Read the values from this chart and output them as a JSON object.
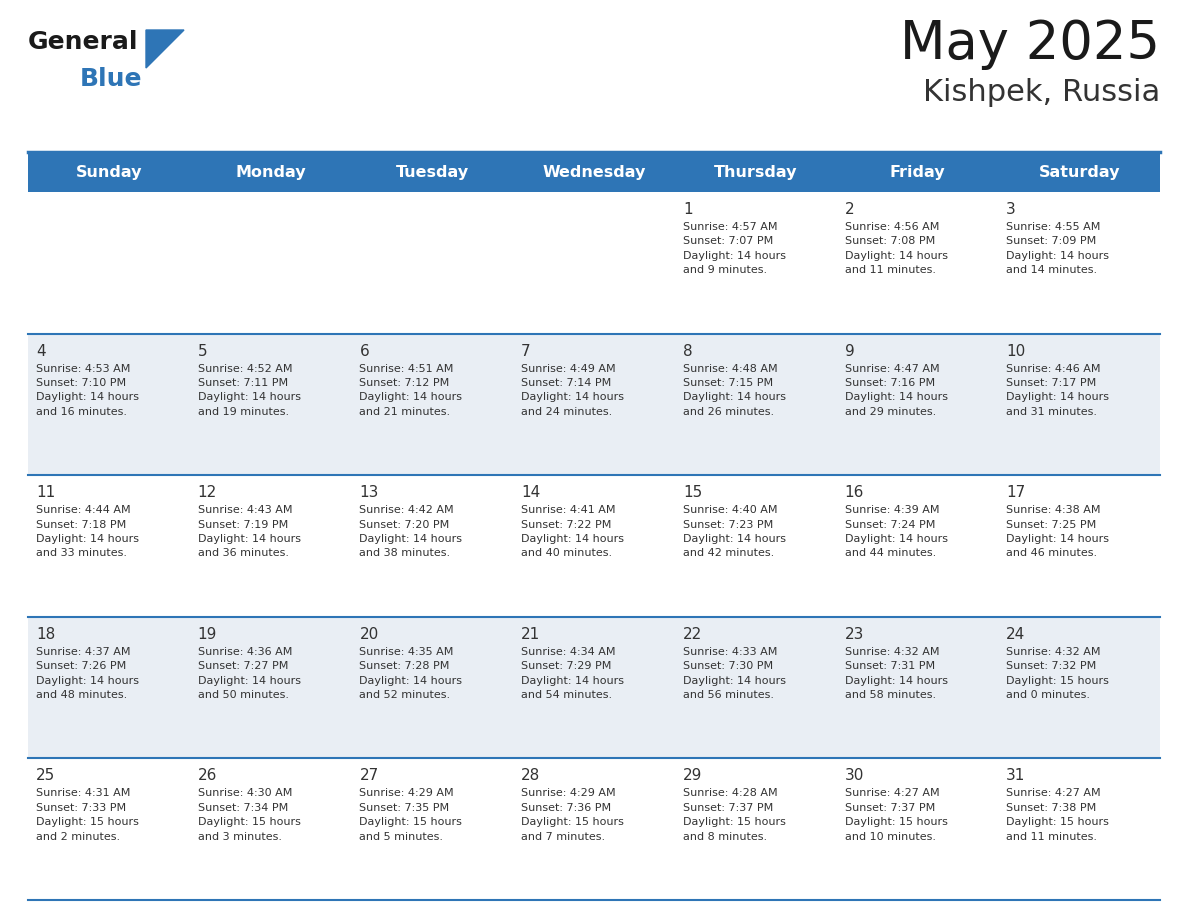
{
  "title": "May 2025",
  "subtitle": "Kishpek, Russia",
  "days_of_week": [
    "Sunday",
    "Monday",
    "Tuesday",
    "Wednesday",
    "Thursday",
    "Friday",
    "Saturday"
  ],
  "header_bg": "#2E75B6",
  "header_text": "#FFFFFF",
  "cell_bg_odd": "#FFFFFF",
  "cell_bg_even": "#E9EEF4",
  "separator_color": "#2E75B6",
  "day_num_color": "#333333",
  "cell_text_color": "#333333",
  "title_color": "#1a1a1a",
  "subtitle_color": "#333333",
  "logo_general_color": "#1a1a1a",
  "logo_blue_color": "#2E75B6",
  "weeks": [
    [
      {
        "day": null,
        "info": null
      },
      {
        "day": null,
        "info": null
      },
      {
        "day": null,
        "info": null
      },
      {
        "day": null,
        "info": null
      },
      {
        "day": 1,
        "info": "Sunrise: 4:57 AM\nSunset: 7:07 PM\nDaylight: 14 hours\nand 9 minutes."
      },
      {
        "day": 2,
        "info": "Sunrise: 4:56 AM\nSunset: 7:08 PM\nDaylight: 14 hours\nand 11 minutes."
      },
      {
        "day": 3,
        "info": "Sunrise: 4:55 AM\nSunset: 7:09 PM\nDaylight: 14 hours\nand 14 minutes."
      }
    ],
    [
      {
        "day": 4,
        "info": "Sunrise: 4:53 AM\nSunset: 7:10 PM\nDaylight: 14 hours\nand 16 minutes."
      },
      {
        "day": 5,
        "info": "Sunrise: 4:52 AM\nSunset: 7:11 PM\nDaylight: 14 hours\nand 19 minutes."
      },
      {
        "day": 6,
        "info": "Sunrise: 4:51 AM\nSunset: 7:12 PM\nDaylight: 14 hours\nand 21 minutes."
      },
      {
        "day": 7,
        "info": "Sunrise: 4:49 AM\nSunset: 7:14 PM\nDaylight: 14 hours\nand 24 minutes."
      },
      {
        "day": 8,
        "info": "Sunrise: 4:48 AM\nSunset: 7:15 PM\nDaylight: 14 hours\nand 26 minutes."
      },
      {
        "day": 9,
        "info": "Sunrise: 4:47 AM\nSunset: 7:16 PM\nDaylight: 14 hours\nand 29 minutes."
      },
      {
        "day": 10,
        "info": "Sunrise: 4:46 AM\nSunset: 7:17 PM\nDaylight: 14 hours\nand 31 minutes."
      }
    ],
    [
      {
        "day": 11,
        "info": "Sunrise: 4:44 AM\nSunset: 7:18 PM\nDaylight: 14 hours\nand 33 minutes."
      },
      {
        "day": 12,
        "info": "Sunrise: 4:43 AM\nSunset: 7:19 PM\nDaylight: 14 hours\nand 36 minutes."
      },
      {
        "day": 13,
        "info": "Sunrise: 4:42 AM\nSunset: 7:20 PM\nDaylight: 14 hours\nand 38 minutes."
      },
      {
        "day": 14,
        "info": "Sunrise: 4:41 AM\nSunset: 7:22 PM\nDaylight: 14 hours\nand 40 minutes."
      },
      {
        "day": 15,
        "info": "Sunrise: 4:40 AM\nSunset: 7:23 PM\nDaylight: 14 hours\nand 42 minutes."
      },
      {
        "day": 16,
        "info": "Sunrise: 4:39 AM\nSunset: 7:24 PM\nDaylight: 14 hours\nand 44 minutes."
      },
      {
        "day": 17,
        "info": "Sunrise: 4:38 AM\nSunset: 7:25 PM\nDaylight: 14 hours\nand 46 minutes."
      }
    ],
    [
      {
        "day": 18,
        "info": "Sunrise: 4:37 AM\nSunset: 7:26 PM\nDaylight: 14 hours\nand 48 minutes."
      },
      {
        "day": 19,
        "info": "Sunrise: 4:36 AM\nSunset: 7:27 PM\nDaylight: 14 hours\nand 50 minutes."
      },
      {
        "day": 20,
        "info": "Sunrise: 4:35 AM\nSunset: 7:28 PM\nDaylight: 14 hours\nand 52 minutes."
      },
      {
        "day": 21,
        "info": "Sunrise: 4:34 AM\nSunset: 7:29 PM\nDaylight: 14 hours\nand 54 minutes."
      },
      {
        "day": 22,
        "info": "Sunrise: 4:33 AM\nSunset: 7:30 PM\nDaylight: 14 hours\nand 56 minutes."
      },
      {
        "day": 23,
        "info": "Sunrise: 4:32 AM\nSunset: 7:31 PM\nDaylight: 14 hours\nand 58 minutes."
      },
      {
        "day": 24,
        "info": "Sunrise: 4:32 AM\nSunset: 7:32 PM\nDaylight: 15 hours\nand 0 minutes."
      }
    ],
    [
      {
        "day": 25,
        "info": "Sunrise: 4:31 AM\nSunset: 7:33 PM\nDaylight: 15 hours\nand 2 minutes."
      },
      {
        "day": 26,
        "info": "Sunrise: 4:30 AM\nSunset: 7:34 PM\nDaylight: 15 hours\nand 3 minutes."
      },
      {
        "day": 27,
        "info": "Sunrise: 4:29 AM\nSunset: 7:35 PM\nDaylight: 15 hours\nand 5 minutes."
      },
      {
        "day": 28,
        "info": "Sunrise: 4:29 AM\nSunset: 7:36 PM\nDaylight: 15 hours\nand 7 minutes."
      },
      {
        "day": 29,
        "info": "Sunrise: 4:28 AM\nSunset: 7:37 PM\nDaylight: 15 hours\nand 8 minutes."
      },
      {
        "day": 30,
        "info": "Sunrise: 4:27 AM\nSunset: 7:37 PM\nDaylight: 15 hours\nand 10 minutes."
      },
      {
        "day": 31,
        "info": "Sunrise: 4:27 AM\nSunset: 7:38 PM\nDaylight: 15 hours\nand 11 minutes."
      }
    ]
  ]
}
